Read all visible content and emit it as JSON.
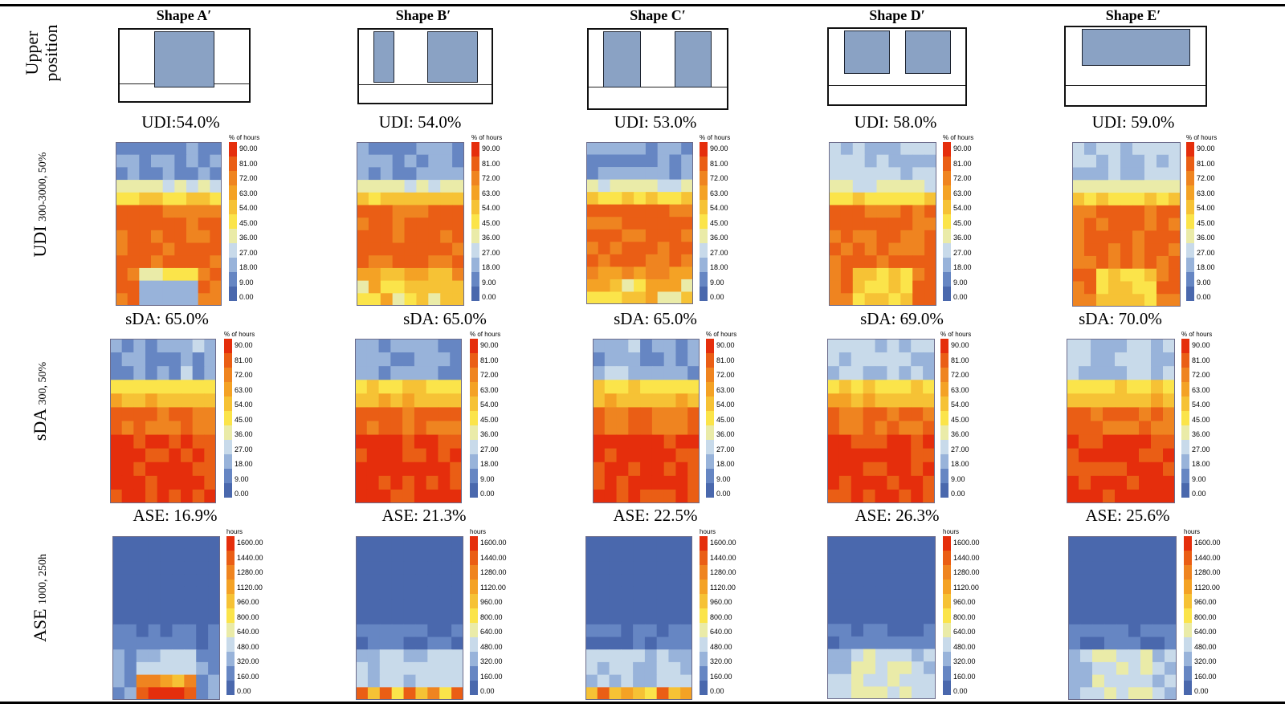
{
  "columns": [
    {
      "title": "Shape A′",
      "udi": "UDI:54.0%",
      "sda": "sDA: 65.0%",
      "ase": "ASE: 16.9%"
    },
    {
      "title": "Shape B′",
      "udi": "UDI: 54.0%",
      "sda": "sDA: 65.0%",
      "ase": "ASE: 21.3%"
    },
    {
      "title": "Shape C′",
      "udi": "UDI: 53.0%",
      "sda": "sDA: 65.0%",
      "ase": "ASE: 22.5%"
    },
    {
      "title": "Shape D′",
      "udi": "UDI: 58.0%",
      "sda": "sDA: 69.0%",
      "ase": "ASE: 26.3%"
    },
    {
      "title": "Shape E′",
      "udi": "UDI: 59.0%",
      "sda": "sDA: 70.0%",
      "ase": "ASE: 25.6%"
    }
  ],
  "rows": {
    "position": {
      "line1": "Upper",
      "line2": "position"
    },
    "udi": {
      "main": "UDI",
      "sub": "300-3000, 50%"
    },
    "sda": {
      "main": "sDA",
      "sub": "300, 50%"
    },
    "ase": {
      "main": "ASE",
      "sub": "1000, 250h"
    }
  },
  "legends": {
    "percent": {
      "title": "% of hours",
      "ticks": [
        "90.00",
        "81.00",
        "72.00",
        "63.00",
        "54.00",
        "45.00",
        "36.00",
        "27.00",
        "18.00",
        "9.00",
        "0.00"
      ]
    },
    "hours": {
      "title": "hours",
      "ticks": [
        "1600.00",
        "1440.00",
        "1280.00",
        "1120.00",
        "960.00",
        "800.00",
        "640.00",
        "480.00",
        "320.00",
        "160.00",
        "0.00"
      ]
    }
  },
  "colors": {
    "scale": [
      "#4a68ad",
      "#6686c3",
      "#98b3da",
      "#c8daea",
      "#eaeba8",
      "#fbe44a",
      "#f6c235",
      "#f4a225",
      "#ef8420",
      "#ea5e15",
      "#e52e0c"
    ],
    "window": "#8aa2c4"
  }
}
